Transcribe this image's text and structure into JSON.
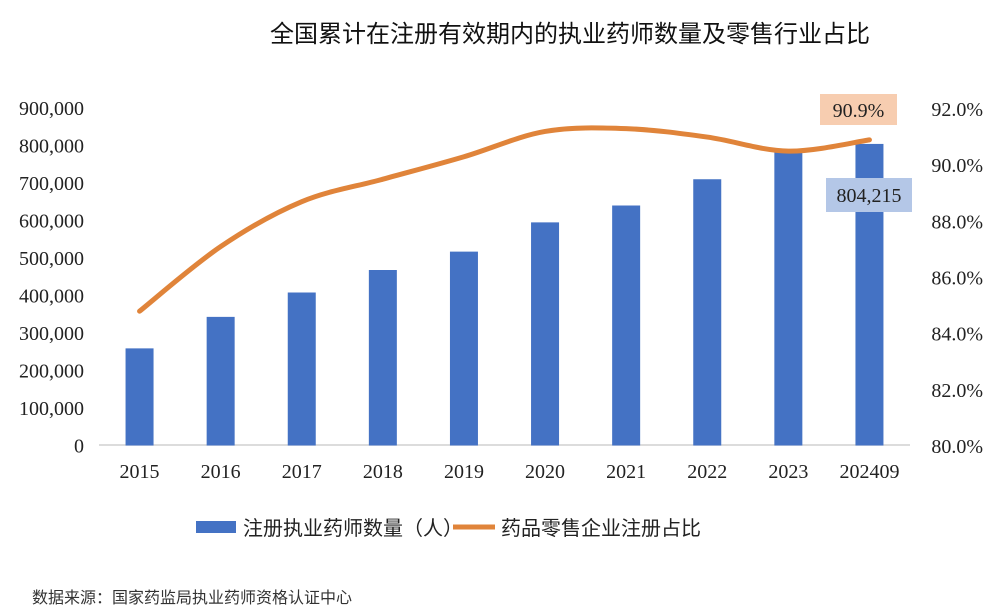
{
  "chart_data": {
    "type": "bar+line",
    "title": "全国累计在注册有效期内的执业药师数量及零售行业占比",
    "categories": [
      "2015",
      "2016",
      "2017",
      "2018",
      "2019",
      "2020",
      "2021",
      "2022",
      "2023",
      "202409"
    ],
    "series": [
      {
        "name": "注册执业药师数量（人）",
        "type": "bar",
        "axis": "left",
        "color": "#4472C4",
        "values": [
          259000,
          343000,
          408000,
          468000,
          517000,
          595000,
          640000,
          710000,
          790000,
          804215
        ]
      },
      {
        "name": "药品零售企业注册占比",
        "type": "line",
        "axis": "right",
        "color": "#E0843A",
        "smooth": true,
        "values": [
          84.8,
          87.1,
          88.7,
          89.5,
          90.3,
          91.2,
          91.3,
          91.0,
          90.5,
          90.9
        ]
      }
    ],
    "y_left": {
      "min": 0,
      "max": 900000,
      "ticks": [
        "0",
        "100,000",
        "200,000",
        "300,000",
        "400,000",
        "500,000",
        "600,000",
        "700,000",
        "800,000",
        "900,000"
      ]
    },
    "y_right": {
      "min": 80,
      "max": 92,
      "ticks": [
        "80.0%",
        "82.0%",
        "84.0%",
        "86.0%",
        "88.0%",
        "90.0%",
        "92.0%"
      ]
    },
    "data_labels": {
      "line_last": {
        "text": "90.9%",
        "bg": "#F7CDB0"
      },
      "bar_last": {
        "text": "804,215",
        "bg": "#B4C7E7"
      }
    },
    "legend": {
      "position": "bottom",
      "items": [
        "注册执业药师数量（人）",
        "药品零售企业注册占比"
      ]
    },
    "grid": false,
    "source": "数据来源：国家药监局执业药师资格认证中心"
  }
}
